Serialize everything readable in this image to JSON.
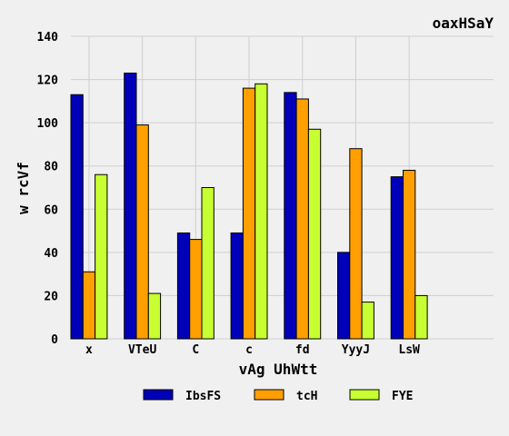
{
  "chart_data": {
    "type": "bar",
    "title": "oaxHSaY",
    "xlabel": "vAg UhWtt",
    "ylabel": "w  rcVf",
    "categories": [
      "x",
      "VTeU",
      "C",
      "c",
      "fd",
      "YyyJ",
      "LsW"
    ],
    "ylim": [
      0,
      140
    ],
    "yticks": [
      0,
      20,
      40,
      60,
      80,
      100,
      120,
      140
    ],
    "grid": true,
    "legend_position": "bottom",
    "series": [
      {
        "name": "IbsFS",
        "color": "#0000b8",
        "values": [
          113,
          123,
          49,
          49,
          114,
          40,
          75
        ]
      },
      {
        "name": "tcH",
        "color": "#ff9f00",
        "values": [
          31,
          99,
          46,
          116,
          111,
          88,
          78
        ]
      },
      {
        "name": "FYE",
        "color": "#c8ff32",
        "values": [
          76,
          21,
          70,
          118,
          97,
          17,
          20
        ]
      }
    ]
  }
}
